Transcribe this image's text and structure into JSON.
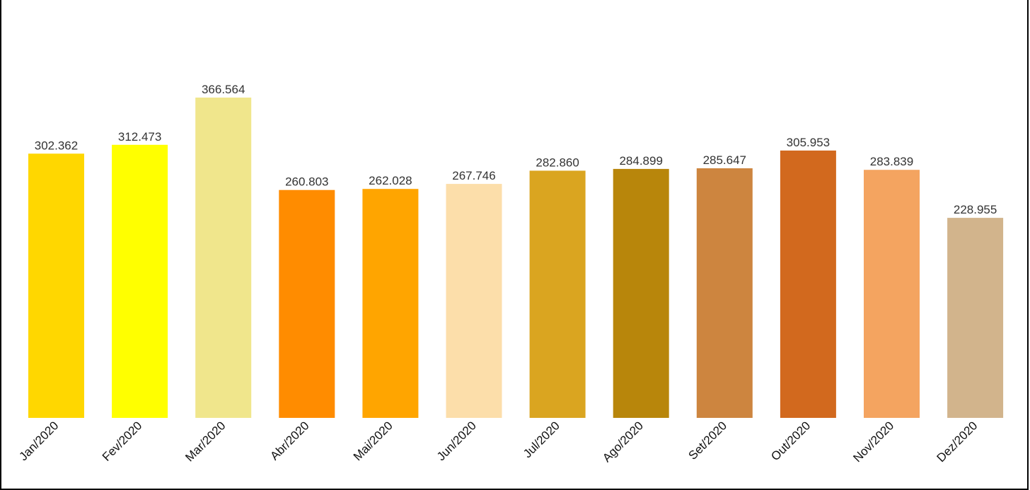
{
  "chart_data": {
    "type": "bar",
    "title": "",
    "xlabel": "",
    "ylabel": "",
    "ylim": [
      0,
      375000
    ],
    "grid": false,
    "legend": "none",
    "categories": [
      "Jan/2020",
      "Fev/2020",
      "Mar/2020",
      "Abr/2020",
      "Mai/2020",
      "Jun/2020",
      "Jul/2020",
      "Ago/2020",
      "Set/2020",
      "Out/2020",
      "Nov/2020",
      "Dez/2020"
    ],
    "values": [
      302362,
      312473,
      366564,
      260803,
      262028,
      267746,
      282860,
      284899,
      285647,
      305953,
      283839,
      228955
    ],
    "value_labels": [
      "302.362",
      "312.473",
      "366.564",
      "260.803",
      "262.028",
      "267.746",
      "282.860",
      "284.899",
      "285.647",
      "305.953",
      "283.839",
      "228.955"
    ],
    "colors": [
      "#FFD700",
      "#FFFF00",
      "#F0E68C",
      "#FF8C00",
      "#FFA500",
      "#FCDEAA",
      "#DAA520",
      "#B8860B",
      "#CD853F",
      "#D2691E",
      "#F4A460",
      "#D2B48C"
    ]
  }
}
